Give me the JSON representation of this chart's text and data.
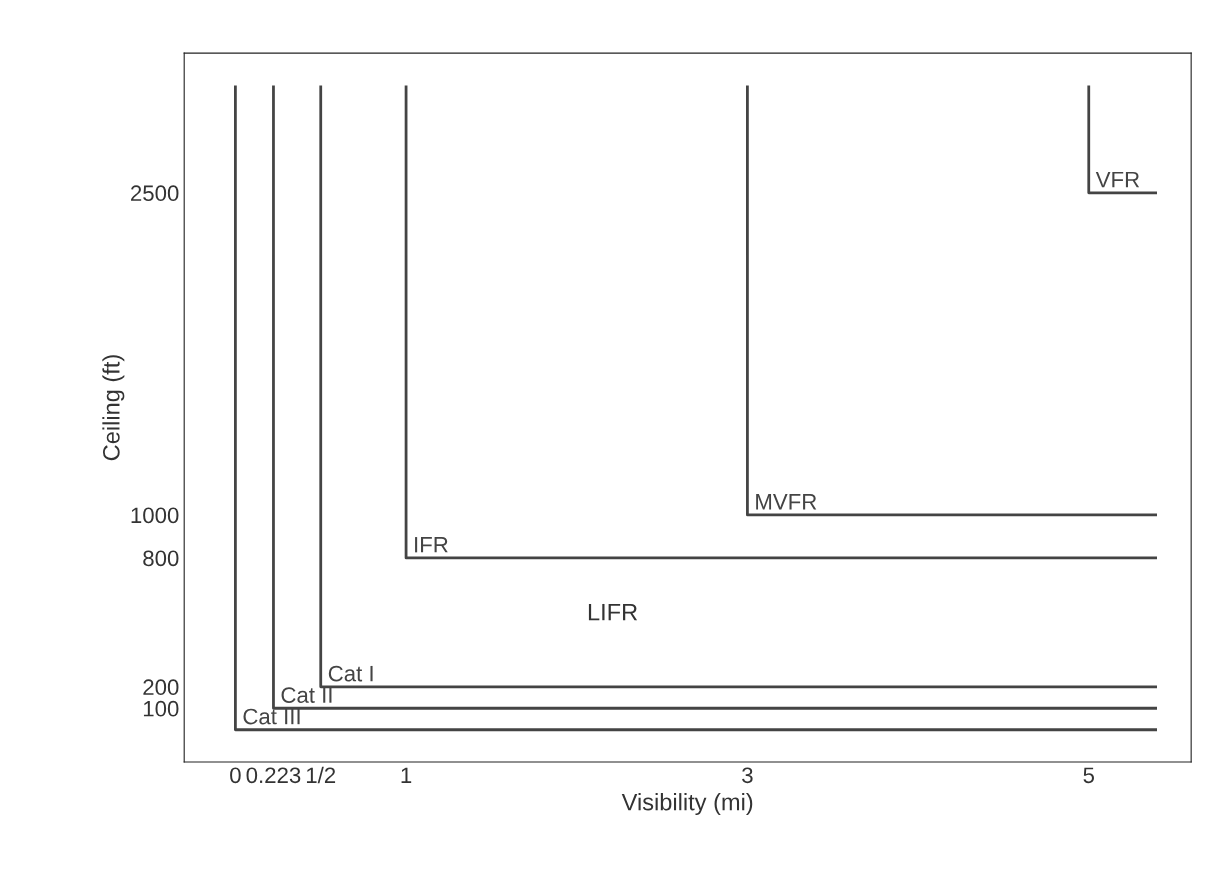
{
  "chart_data": {
    "type": "line",
    "xlabel": "Visibility (mi)",
    "ylabel": "Ceiling (ft)",
    "series": [
      {
        "name": "Cat III",
        "color": "#444444",
        "x": [
          0,
          0,
          5.4
        ],
        "values": [
          3000,
          0,
          0
        ]
      },
      {
        "name": "Cat II",
        "color": "#444444",
        "x": [
          0.223,
          0.223,
          5.4
        ],
        "values": [
          3000,
          100,
          100
        ]
      },
      {
        "name": "Cat I",
        "color": "#444444",
        "x": [
          0.5,
          0.5,
          5.4
        ],
        "values": [
          3000,
          200,
          200
        ]
      },
      {
        "name": "IFR",
        "color": "#444444",
        "x": [
          1,
          1,
          5.4
        ],
        "values": [
          3000,
          800,
          800
        ]
      },
      {
        "name": "MVFR",
        "color": "#444444",
        "x": [
          3,
          3,
          5.4
        ],
        "values": [
          3000,
          1000,
          1000
        ]
      },
      {
        "name": "VFR",
        "color": "#444444",
        "x": [
          5,
          5,
          5.4
        ],
        "values": [
          3000,
          2500,
          2500
        ]
      }
    ],
    "annotations": [
      "LIFR"
    ],
    "xlim": [
      -0.3,
      5.6
    ],
    "ylim": [
      -150,
      3150
    ],
    "xticks": [
      0,
      0.223,
      {
        "value": 0.5,
        "label": "1/2"
      },
      1,
      3,
      5
    ],
    "yticks": [
      100,
      200,
      800,
      1000,
      2500
    ],
    "grid": false,
    "legend": false,
    "marker": "none",
    "line_style": "solid"
  }
}
